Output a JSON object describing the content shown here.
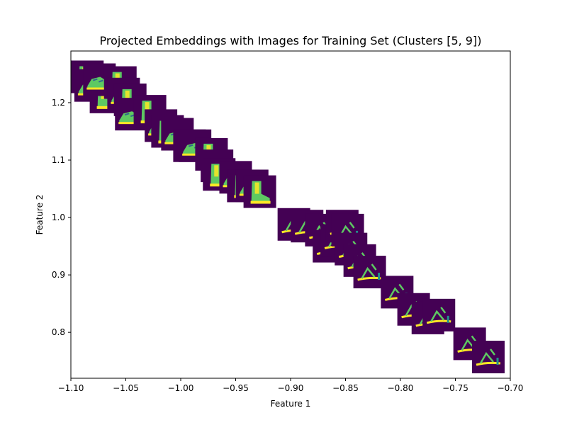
{
  "chart_data": {
    "type": "scatter",
    "title": "Projected Embeddings with Images for Training Set (Clusters [5, 9])",
    "xlabel": "Feature 1",
    "ylabel": "Feature 2",
    "xlim": [
      -1.1,
      -0.7
    ],
    "ylim": [
      0.72,
      1.29
    ],
    "xticks": [
      -1.1,
      -1.05,
      -1.0,
      -0.95,
      -0.9,
      -0.85,
      -0.8,
      -0.75,
      -0.7
    ],
    "xtick_labels": [
      "−1.10",
      "−1.05",
      "−1.00",
      "−0.95",
      "−0.90",
      "−0.85",
      "−0.80",
      "−0.75",
      "−0.70"
    ],
    "yticks": [
      0.8,
      0.9,
      1.0,
      1.1,
      1.2
    ],
    "ytick_labels": [
      "0.8",
      "0.9",
      "1.0",
      "1.1",
      "1.2"
    ],
    "grid": false,
    "marker_style": "image thumbnails (viridis colormap)",
    "colors": {
      "background": "#440154",
      "mid": "#31688e",
      "teal": "#21918c",
      "green": "#5ec962",
      "yellow": "#fde725"
    },
    "series": [
      {
        "x": [
          -1.085,
          -1.082,
          -1.068,
          -1.074,
          -1.055,
          -1.052,
          -1.046,
          -1.045,
          -1.028,
          -1.018,
          -1.012,
          -1.003,
          -0.992,
          -0.987,
          -0.972,
          -0.967,
          -0.965,
          -0.95,
          -0.943,
          -0.935,
          -0.928
        ],
        "y": [
          1.245,
          1.23,
          1.21,
          1.24,
          1.235,
          1.215,
          1.205,
          1.18,
          1.185,
          1.16,
          1.15,
          1.145,
          1.125,
          1.125,
          1.11,
          1.09,
          1.075,
          1.07,
          1.055,
          1.055,
          1.045
        ]
      },
      {
        "x": [
          -0.897,
          -0.885,
          -0.872,
          -0.865,
          -0.858,
          -0.853,
          -0.848,
          -0.845,
          -0.837,
          -0.828,
          -0.803,
          -0.788,
          -0.775,
          -0.765,
          -0.737,
          -0.72
        ],
        "y": [
          0.988,
          0.985,
          0.978,
          0.95,
          0.96,
          0.985,
          0.978,
          0.945,
          0.925,
          0.905,
          0.87,
          0.84,
          0.825,
          0.83,
          0.78,
          0.757
        ]
      }
    ]
  }
}
